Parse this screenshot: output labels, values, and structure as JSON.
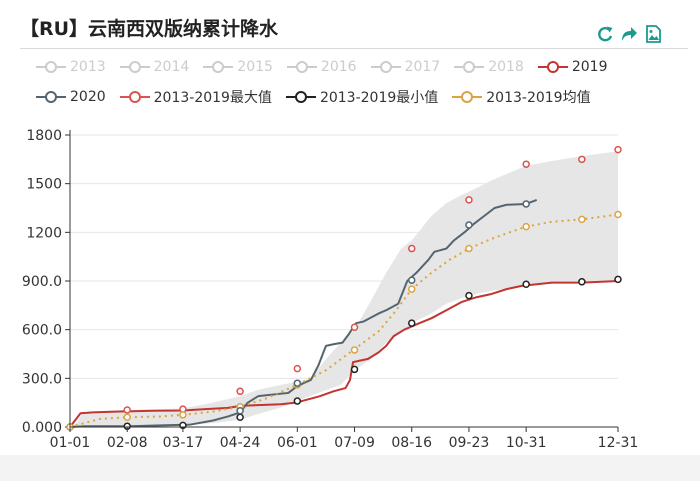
{
  "title": "【RU】云南西双版纳累计降水",
  "toolbox": [
    {
      "name": "restore-icon",
      "color": "#1a9c8c"
    },
    {
      "name": "share-icon",
      "color": "#1a9c8c"
    },
    {
      "name": "save-image-icon",
      "color": "#1a9c8c"
    }
  ],
  "legend": [
    {
      "label": "2013",
      "color": "#cccccc",
      "active": false
    },
    {
      "label": "2014",
      "color": "#cccccc",
      "active": false
    },
    {
      "label": "2015",
      "color": "#cccccc",
      "active": false
    },
    {
      "label": "2016",
      "color": "#cccccc",
      "active": false
    },
    {
      "label": "2017",
      "color": "#cccccc",
      "active": false
    },
    {
      "label": "2018",
      "color": "#cccccc",
      "active": false
    },
    {
      "label": "2019",
      "color": "#c23531",
      "active": true
    },
    {
      "label": "2020",
      "color": "#546570",
      "active": true
    },
    {
      "label": "2013-2019最大值",
      "color": "#d9534f",
      "active": true
    },
    {
      "label": "2013-2019最小值",
      "color": "#222222",
      "active": true
    },
    {
      "label": "2013-2019均值",
      "color": "#d9a441",
      "active": true
    }
  ],
  "chart_data": {
    "type": "line",
    "x_tick_labels": [
      "01-01",
      "02-08",
      "03-17",
      "04-24",
      "06-01",
      "07-09",
      "08-16",
      "09-23",
      "10-31",
      "12-31"
    ],
    "x_tick_days": [
      0,
      38,
      75,
      113,
      151,
      189,
      227,
      265,
      303,
      364
    ],
    "y_tick_labels": [
      "0.000",
      "300.0",
      "600.0",
      "900.0",
      "1200",
      "1500",
      "1800"
    ],
    "ylim": [
      0,
      1800
    ],
    "xlim": [
      0,
      364
    ],
    "grid": true,
    "band": {
      "name": "2013-2019最大值/最小值 range",
      "fill": "#e6e6e6",
      "upper": [
        [
          0,
          0
        ],
        [
          5,
          30
        ],
        [
          8,
          85
        ],
        [
          20,
          95
        ],
        [
          38,
          105
        ],
        [
          60,
          110
        ],
        [
          75,
          115
        ],
        [
          95,
          150
        ],
        [
          113,
          190
        ],
        [
          125,
          230
        ],
        [
          140,
          260
        ],
        [
          151,
          280
        ],
        [
          160,
          300
        ],
        [
          170,
          420
        ],
        [
          180,
          520
        ],
        [
          189,
          600
        ],
        [
          200,
          780
        ],
        [
          210,
          950
        ],
        [
          220,
          1100
        ],
        [
          227,
          1150
        ],
        [
          240,
          1300
        ],
        [
          250,
          1380
        ],
        [
          260,
          1430
        ],
        [
          265,
          1450
        ],
        [
          280,
          1520
        ],
        [
          295,
          1580
        ],
        [
          303,
          1610
        ],
        [
          320,
          1640
        ],
        [
          340,
          1670
        ],
        [
          364,
          1700
        ]
      ],
      "lower": [
        [
          0,
          0
        ],
        [
          20,
          5
        ],
        [
          38,
          5
        ],
        [
          75,
          10
        ],
        [
          90,
          20
        ],
        [
          100,
          30
        ],
        [
          113,
          45
        ],
        [
          125,
          80
        ],
        [
          140,
          120
        ],
        [
          151,
          160
        ],
        [
          165,
          210
        ],
        [
          180,
          260
        ],
        [
          189,
          350
        ],
        [
          200,
          420
        ],
        [
          210,
          520
        ],
        [
          220,
          580
        ],
        [
          227,
          640
        ],
        [
          240,
          700
        ],
        [
          250,
          760
        ],
        [
          265,
          810
        ],
        [
          280,
          840
        ],
        [
          295,
          860
        ],
        [
          303,
          875
        ],
        [
          320,
          885
        ],
        [
          340,
          890
        ],
        [
          364,
          900
        ]
      ]
    },
    "series": [
      {
        "name": "2019",
        "color": "#c23531",
        "width": 2,
        "dash": "",
        "points": [
          [
            0,
            0
          ],
          [
            7,
            85
          ],
          [
            15,
            90
          ],
          [
            30,
            95
          ],
          [
            55,
            100
          ],
          [
            75,
            102
          ],
          [
            90,
            110
          ],
          [
            105,
            118
          ],
          [
            113,
            130
          ],
          [
            125,
            135
          ],
          [
            140,
            140
          ],
          [
            150,
            150
          ],
          [
            158,
            170
          ],
          [
            166,
            190
          ],
          [
            175,
            220
          ],
          [
            183,
            240
          ],
          [
            186,
            290
          ],
          [
            188,
            400
          ],
          [
            198,
            420
          ],
          [
            205,
            460
          ],
          [
            210,
            500
          ],
          [
            215,
            560
          ],
          [
            222,
            600
          ],
          [
            232,
            640
          ],
          [
            240,
            670
          ],
          [
            250,
            720
          ],
          [
            260,
            770
          ],
          [
            270,
            800
          ],
          [
            280,
            820
          ],
          [
            290,
            850
          ],
          [
            300,
            870
          ],
          [
            310,
            880
          ],
          [
            320,
            890
          ],
          [
            340,
            890
          ],
          [
            364,
            900
          ]
        ]
      },
      {
        "name": "2020",
        "color": "#546570",
        "width": 2,
        "dash": "",
        "points": [
          [
            0,
            0
          ],
          [
            10,
            5
          ],
          [
            20,
            5
          ],
          [
            40,
            5
          ],
          [
            60,
            10
          ],
          [
            80,
            15
          ],
          [
            95,
            40
          ],
          [
            105,
            65
          ],
          [
            113,
            90
          ],
          [
            118,
            150
          ],
          [
            125,
            190
          ],
          [
            135,
            200
          ],
          [
            145,
            210
          ],
          [
            150,
            245
          ],
          [
            155,
            270
          ],
          [
            160,
            290
          ],
          [
            165,
            380
          ],
          [
            170,
            500
          ],
          [
            175,
            510
          ],
          [
            181,
            520
          ],
          [
            185,
            570
          ],
          [
            190,
            640
          ],
          [
            195,
            650
          ],
          [
            205,
            700
          ],
          [
            210,
            720
          ],
          [
            218,
            760
          ],
          [
            224,
            900
          ],
          [
            230,
            950
          ],
          [
            235,
            1000
          ],
          [
            238,
            1030
          ],
          [
            242,
            1080
          ],
          [
            250,
            1100
          ],
          [
            255,
            1150
          ],
          [
            262,
            1200
          ],
          [
            268,
            1250
          ],
          [
            275,
            1300
          ],
          [
            282,
            1350
          ],
          [
            290,
            1370
          ],
          [
            303,
            1375
          ],
          [
            310,
            1400
          ]
        ]
      },
      {
        "name": "2013-2019均值",
        "color": "#d9a441",
        "width": 2,
        "dash": "2,4",
        "points": [
          [
            0,
            0
          ],
          [
            20,
            50
          ],
          [
            38,
            60
          ],
          [
            60,
            65
          ],
          [
            75,
            75
          ],
          [
            95,
            95
          ],
          [
            113,
            125
          ],
          [
            130,
            175
          ],
          [
            151,
            260
          ],
          [
            170,
            350
          ],
          [
            189,
            480
          ],
          [
            205,
            590
          ],
          [
            215,
            700
          ],
          [
            227,
            850
          ],
          [
            240,
            950
          ],
          [
            252,
            1030
          ],
          [
            265,
            1100
          ],
          [
            280,
            1160
          ],
          [
            295,
            1210
          ],
          [
            303,
            1235
          ],
          [
            320,
            1265
          ],
          [
            340,
            1280
          ],
          [
            364,
            1310
          ]
        ]
      }
    ],
    "markers": [
      {
        "series": "2013-2019最大值",
        "color": "#d9534f",
        "points": [
          [
            0,
            0
          ],
          [
            38,
            105
          ],
          [
            75,
            110
          ],
          [
            113,
            220
          ],
          [
            151,
            360
          ],
          [
            189,
            615
          ],
          [
            227,
            1100
          ],
          [
            265,
            1400
          ],
          [
            303,
            1620
          ],
          [
            340,
            1650
          ],
          [
            364,
            1710
          ]
        ]
      },
      {
        "series": "2013-2019最小值",
        "color": "#222222",
        "points": [
          [
            0,
            0
          ],
          [
            38,
            5
          ],
          [
            75,
            10
          ],
          [
            113,
            60
          ],
          [
            151,
            160
          ],
          [
            189,
            355
          ],
          [
            227,
            640
          ],
          [
            265,
            810
          ],
          [
            303,
            880
          ],
          [
            340,
            895
          ],
          [
            364,
            910
          ]
        ]
      },
      {
        "series": "2013-2019均值",
        "color": "#d9a441",
        "points": [
          [
            0,
            0
          ],
          [
            38,
            60
          ],
          [
            75,
            75
          ],
          [
            113,
            125
          ],
          [
            151,
            260
          ],
          [
            189,
            475
          ],
          [
            227,
            850
          ],
          [
            265,
            1100
          ],
          [
            303,
            1235
          ],
          [
            340,
            1280
          ],
          [
            364,
            1310
          ]
        ]
      },
      {
        "series": "2020",
        "color": "#546570",
        "points": [
          [
            113,
            100
          ],
          [
            151,
            270
          ],
          [
            227,
            905
          ],
          [
            265,
            1245
          ],
          [
            303,
            1375
          ]
        ]
      }
    ]
  }
}
